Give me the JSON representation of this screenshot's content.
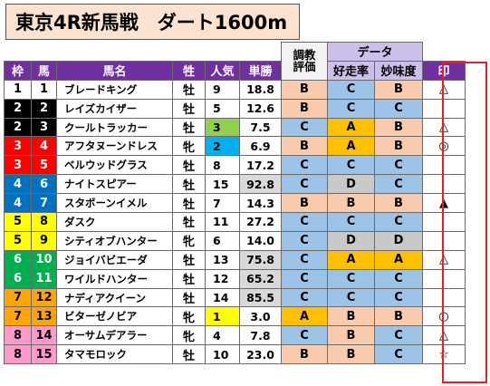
{
  "title": "東京4R新馬戦　ダート1600m",
  "headers": {
    "waku": "枠",
    "uma": "馬",
    "name": "馬名",
    "sex": "牲",
    "pop": "人気",
    "odds": "単勝",
    "eval_top": "調教",
    "eval_bottom": "評価",
    "data": "データ",
    "kosou": "好走率",
    "mimi": "妙味度",
    "mark": "印"
  },
  "colors": {
    "purple": "#7030a0",
    "lavender": "#ccc0ea",
    "title_bg": "#fbe3d0",
    "rating_A": "#ffc000",
    "rating_B": "#f8cbad",
    "rating_C": "#9dc3e6",
    "rating_D": "#c9c9c9",
    "frame_red": "#e81e25",
    "waku_1": "#ffffff",
    "waku_2": "#000000",
    "waku_3": "#ff0000",
    "waku_4": "#0070c0",
    "waku_5": "#ffff00",
    "waku_6": "#00b050",
    "waku_7": "#ffa500",
    "waku_8": "#ff99cc",
    "odds_gray": "#d9d9d9",
    "pop1": "#ffff00",
    "pop2": "#00b0f0",
    "pop3": "#92d050"
  },
  "rows": [
    {
      "waku": "1",
      "uma": "1",
      "name": "ブレードキング",
      "sex": "牡",
      "pop": "9",
      "odds": "18.8",
      "eval": "B",
      "kosou": "C",
      "mimi": "B",
      "mark": "△"
    },
    {
      "waku": "2",
      "uma": "2",
      "name": "レイズカイザー",
      "sex": "牡",
      "pop": "5",
      "odds": "12.6",
      "eval": "B",
      "kosou": "C",
      "mimi": "C",
      "mark": ""
    },
    {
      "waku": "2",
      "uma": "3",
      "name": "クールトラッカー",
      "sex": "牡",
      "pop": "3",
      "odds": "7.5",
      "eval": "C",
      "kosou": "A",
      "mimi": "B",
      "mark": "△"
    },
    {
      "waku": "3",
      "uma": "4",
      "name": "アフタヌーンドレス",
      "sex": "牝",
      "pop": "2",
      "odds": "6.9",
      "eval": "B",
      "kosou": "A",
      "mimi": "B",
      "mark": "◎"
    },
    {
      "waku": "3",
      "uma": "5",
      "name": "ベルウッドグラス",
      "sex": "牡",
      "pop": "8",
      "odds": "17.2",
      "eval": "C",
      "kosou": "C",
      "mimi": "C",
      "mark": ""
    },
    {
      "waku": "4",
      "uma": "6",
      "name": "ナイトスピアー",
      "sex": "牡",
      "pop": "15",
      "odds": "92.8",
      "eval": "C",
      "kosou": "D",
      "mimi": "C",
      "mark": ""
    },
    {
      "waku": "4",
      "uma": "7",
      "name": "スタボーンイメル",
      "sex": "牡",
      "pop": "7",
      "odds": "14.3",
      "eval": "B",
      "kosou": "B",
      "mimi": "B",
      "mark": "▲"
    },
    {
      "waku": "5",
      "uma": "8",
      "name": "ダスク",
      "sex": "牡",
      "pop": "11",
      "odds": "27.2",
      "eval": "C",
      "kosou": "C",
      "mimi": "C",
      "mark": ""
    },
    {
      "waku": "5",
      "uma": "9",
      "name": "シティオブハンター",
      "sex": "牝",
      "pop": "6",
      "odds": "14.0",
      "eval": "C",
      "kosou": "D",
      "mimi": "D",
      "mark": ""
    },
    {
      "waku": "6",
      "uma": "10",
      "name": "ジョイバビエーダ",
      "sex": "牡",
      "pop": "13",
      "odds": "75.8",
      "eval": "C",
      "kosou": "A",
      "mimi": "A",
      "mark": "△"
    },
    {
      "waku": "6",
      "uma": "11",
      "name": "ワイルドハンター",
      "sex": "牡",
      "pop": "12",
      "odds": "65.2",
      "eval": "C",
      "kosou": "C",
      "mimi": "C",
      "mark": ""
    },
    {
      "waku": "7",
      "uma": "12",
      "name": "ナディアクイーン",
      "sex": "牡",
      "pop": "14",
      "odds": "85.5",
      "eval": "C",
      "kosou": "C",
      "mimi": "C",
      "mark": ""
    },
    {
      "waku": "7",
      "uma": "13",
      "name": "ビターゼノビア",
      "sex": "牝",
      "pop": "1",
      "odds": "3.0",
      "eval": "A",
      "kosou": "B",
      "mimi": "B",
      "mark": "○"
    },
    {
      "waku": "8",
      "uma": "14",
      "name": "オーサムデアラー",
      "sex": "牝",
      "pop": "4",
      "odds": "7.8",
      "eval": "C",
      "kosou": "B",
      "mimi": "C",
      "mark": "△"
    },
    {
      "waku": "8",
      "uma": "15",
      "name": "タマモロック",
      "sex": "牡",
      "pop": "10",
      "odds": "23.0",
      "eval": "B",
      "kosou": "B",
      "mimi": "C",
      "mark": "☆"
    }
  ]
}
